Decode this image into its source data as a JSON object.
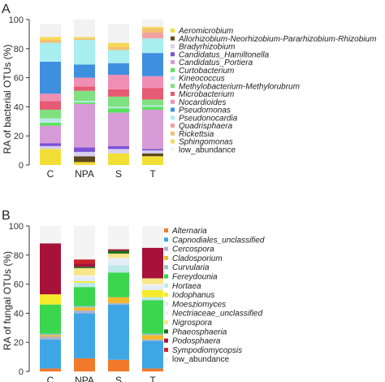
{
  "chart_data": [
    {
      "type": "bar",
      "stacked": true,
      "panel_label": "A",
      "ylabel": "RA of bacterial OTUs (%)",
      "ylim": [
        0,
        100
      ],
      "yticks": [
        0,
        20,
        40,
        60,
        80,
        100
      ],
      "categories": [
        "C",
        "NPA",
        "S",
        "T"
      ],
      "legend_position": "right",
      "series": [
        {
          "name": "Aeromicrobium",
          "color": "#f2de35",
          "italic": true,
          "values": [
            11,
            2,
            8,
            6
          ]
        },
        {
          "name": "Allorhizobium-Neorhizobium-Pararhizobium-Rhizobium",
          "color": "#5c4a1e",
          "italic": true,
          "values": [
            0,
            4,
            0,
            2
          ]
        },
        {
          "name": "Bradyrhizobium",
          "color": "#d8d0ec",
          "italic": true,
          "values": [
            2,
            3,
            3,
            2
          ]
        },
        {
          "name": "Candidatus_Hamiltonella",
          "color": "#7a52d6",
          "italic": true,
          "values": [
            2,
            3,
            2,
            1
          ]
        },
        {
          "name": "Candidatus_Portiera",
          "color": "#d79bd7",
          "italic": true,
          "values": [
            12,
            30,
            23,
            27
          ]
        },
        {
          "name": "Curtobacterium",
          "color": "#58e35a",
          "italic": true,
          "values": [
            2,
            1,
            3,
            2
          ]
        },
        {
          "name": "Kineococcus",
          "color": "#bde8e8",
          "italic": true,
          "values": [
            3,
            1,
            1,
            1
          ]
        },
        {
          "name": "Methylobacterium-Methylorubrum",
          "color": "#7fe07f",
          "italic": true,
          "values": [
            6,
            7,
            7,
            4
          ]
        },
        {
          "name": "Microbacterium",
          "color": "#e65a73",
          "italic": true,
          "values": [
            6,
            3,
            5,
            8
          ]
        },
        {
          "name": "Nocardioides",
          "color": "#ef8fb4",
          "italic": true,
          "values": [
            5,
            6,
            10,
            8
          ]
        },
        {
          "name": "Pseudomonas",
          "color": "#3f8fe0",
          "italic": true,
          "values": [
            22,
            9,
            8,
            16
          ]
        },
        {
          "name": "Pseudonocardia",
          "color": "#a9eef0",
          "italic": true,
          "values": [
            13,
            17,
            9,
            10
          ]
        },
        {
          "name": "Quadrisphaera",
          "color": "#f1a1a1",
          "italic": true,
          "values": [
            0,
            0,
            0,
            4
          ]
        },
        {
          "name": "Rickettsia",
          "color": "#f3c070",
          "italic": true,
          "values": [
            2,
            1,
            2,
            3
          ]
        },
        {
          "name": "Sphingomonas",
          "color": "#f6d95a",
          "italic": true,
          "values": [
            2,
            1,
            3,
            1
          ]
        },
        {
          "name": "low_abundance",
          "color": "#f2f2f2",
          "italic": false,
          "values": [
            9,
            12,
            13,
            5
          ]
        }
      ]
    },
    {
      "type": "bar",
      "stacked": true,
      "panel_label": "B",
      "ylabel": "RA of fungal OTUs (%)",
      "ylim": [
        0,
        100
      ],
      "yticks": [
        0,
        20,
        40,
        60,
        80,
        100
      ],
      "categories": [
        "C",
        "NPA",
        "S",
        "T"
      ],
      "legend_position": "right",
      "series": [
        {
          "name": "Alternaria",
          "color": "#f07a2a",
          "italic": true,
          "values": [
            2,
            9,
            8,
            2
          ]
        },
        {
          "name": "Capnodiales_unclassified",
          "color": "#3fa6e6",
          "italic": true,
          "values": [
            20,
            31,
            38,
            19
          ]
        },
        {
          "name": "Cercospora",
          "color": "#aeb2cc",
          "italic": true,
          "values": [
            2,
            2,
            1,
            1
          ]
        },
        {
          "name": "Cladosporium",
          "color": "#f4b72b",
          "italic": true,
          "values": [
            1,
            2,
            4,
            3
          ]
        },
        {
          "name": "Curvularia",
          "color": "#8ec4c7",
          "italic": true,
          "values": [
            1,
            1,
            0,
            1
          ]
        },
        {
          "name": "Fereydounia",
          "color": "#39d64e",
          "italic": true,
          "values": [
            20,
            13,
            17,
            23
          ]
        },
        {
          "name": "Hortaea",
          "color": "#bde8e8",
          "italic": true,
          "values": [
            0,
            3,
            5,
            2
          ]
        },
        {
          "name": "Iodophanus",
          "color": "#f5ea2c",
          "italic": true,
          "values": [
            7,
            1,
            0,
            5
          ]
        },
        {
          "name": "Moesziomyces",
          "color": "#e4ecf6",
          "italic": true,
          "values": [
            0,
            3,
            5,
            3
          ]
        },
        {
          "name": "Nectriaceae_unclassified",
          "color": "#f2f2f2",
          "italic": true,
          "values": [
            0,
            1,
            0,
            1
          ]
        },
        {
          "name": "Nigrospora",
          "color": "#f9e68a",
          "italic": true,
          "values": [
            0,
            5,
            3,
            4
          ]
        },
        {
          "name": "Phaeosphaeria",
          "color": "#236b1f",
          "italic": true,
          "values": [
            0,
            1,
            2,
            0
          ]
        },
        {
          "name": "Podosphaera",
          "color": "#a6123a",
          "italic": true,
          "values": [
            35,
            2,
            1,
            21
          ]
        },
        {
          "name": "Sympodiomycopsis",
          "color": "#c9242a",
          "italic": true,
          "values": [
            0,
            3,
            0,
            0
          ]
        },
        {
          "name": "low_abundance",
          "color": "#f4f4f4",
          "italic": false,
          "values": [
            12,
            23,
            16,
            15
          ]
        }
      ]
    }
  ]
}
